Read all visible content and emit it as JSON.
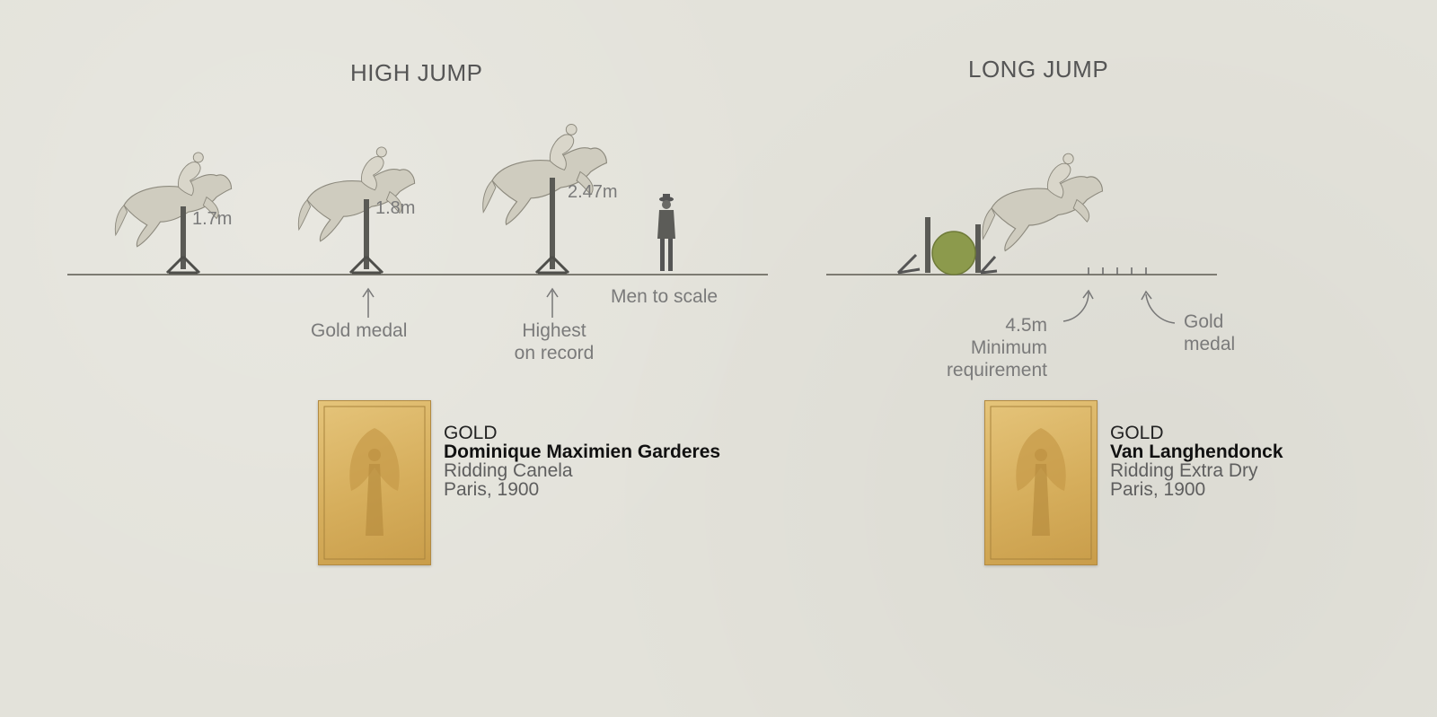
{
  "high_jump": {
    "title": "HIGH JUMP",
    "heights": [
      "1.7m",
      "1.8m",
      "2.47m"
    ],
    "annotations": {
      "gold_medal": "Gold medal",
      "highest_line1": "Highest",
      "highest_line2": "on record",
      "men_to_scale": "Men to scale"
    },
    "winner": {
      "medal": "GOLD",
      "name": "Dominique Maximien Garderes",
      "ride": "Ridding Canela",
      "place": "Paris, 1900"
    }
  },
  "long_jump": {
    "title": "LONG JUMP",
    "annotations": {
      "min_value": "4.5m",
      "min_line1": "Minimum",
      "min_line2": "requirement",
      "gold_line1": "Gold",
      "gold_line2": "medal"
    },
    "winner": {
      "medal": "GOLD",
      "name": "Van Langhendonck",
      "ride": "Ridding Extra Dry",
      "place": "Paris, 1900"
    }
  },
  "colors": {
    "horse": "#cfccbf",
    "pole": "#5a5a55",
    "ground": "#7d7b72",
    "hedge": "#8c9a4c",
    "medal": "#d9b25f"
  },
  "icons": [
    "horse-rider-icon",
    "jump-pole-icon",
    "man-figure-icon",
    "hedge-icon",
    "arrow-up-icon",
    "curved-arrow-icon",
    "medal-poster-icon"
  ]
}
